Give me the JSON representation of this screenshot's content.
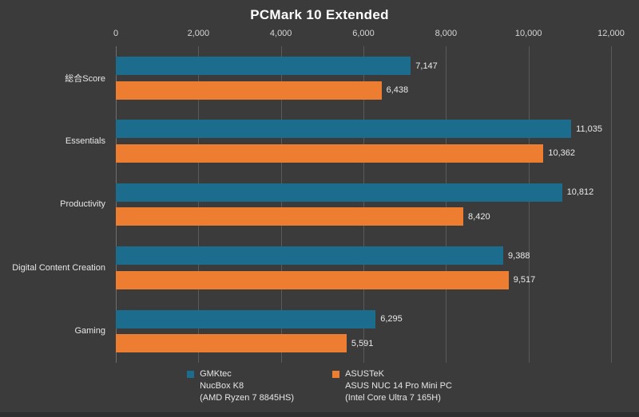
{
  "chart_data": {
    "type": "bar",
    "orientation": "horizontal",
    "title": "PCMark 10 Extended",
    "categories": [
      "総合Score",
      "Essentials",
      "Productivity",
      "Digital Content Creation",
      "Gaming"
    ],
    "series": [
      {
        "name": "GMKtec NucBox K8 (AMD Ryzen 7 8845HS)",
        "color": "#1c6d8d",
        "values": [
          7147,
          11035,
          10812,
          9388,
          6295
        ],
        "labels": [
          "7,147",
          "11,035",
          "10,812",
          "9,388",
          "6,295"
        ]
      },
      {
        "name": "ASUSTeK ASUS NUC 14 Pro Mini PC (Intel Core Ultra 7 165H)",
        "color": "#ed7d31",
        "values": [
          6438,
          10362,
          8420,
          9517,
          5591
        ],
        "labels": [
          "6,438",
          "10,362",
          "8,420",
          "9,517",
          "5,591"
        ]
      }
    ],
    "xlim": [
      0,
      12000
    ],
    "x_ticks": [
      "0",
      "2,000",
      "4,000",
      "6,000",
      "8,000",
      "10,000",
      "12,000"
    ],
    "grid": true,
    "legend_position": "bottom",
    "legend": [
      {
        "lines": [
          "GMKtec",
          "NucBox K8",
          "(AMD Ryzen 7 8845HS)"
        ],
        "color": "#1c6d8d"
      },
      {
        "lines": [
          "ASUSTeK",
          "ASUS NUC 14 Pro Mini PC",
          "(Intel Core Ultra 7 165H)"
        ],
        "color": "#ed7d31"
      }
    ],
    "colors": {
      "background": "#3b3b3b",
      "gridline": "#5a5a5a",
      "axis_line": "#6e6e6e",
      "tick_text": "#d6d6d6",
      "label_text": "#eaeaea"
    }
  }
}
